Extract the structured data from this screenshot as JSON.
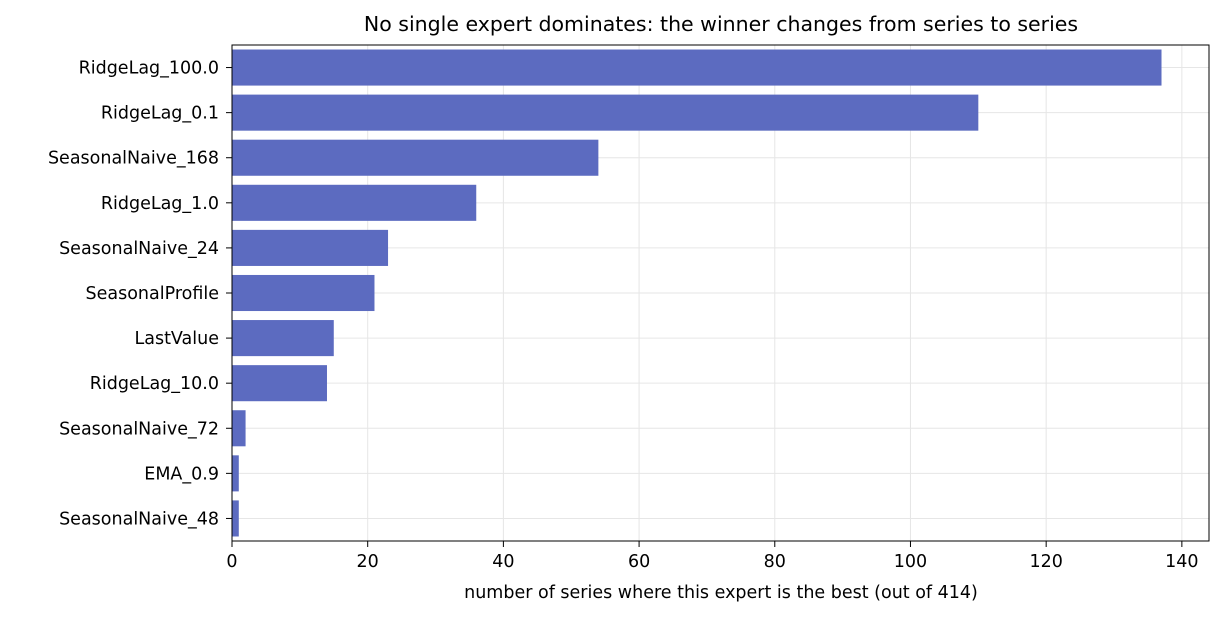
{
  "chart_data": {
    "type": "bar",
    "orientation": "horizontal",
    "title": "No single expert dominates: the winner changes from series to series",
    "xlabel": "number of series where this expert is the best (out of 414)",
    "ylabel": "",
    "categories": [
      "RidgeLag_100.0",
      "RidgeLag_0.1",
      "SeasonalNaive_168",
      "RidgeLag_1.0",
      "SeasonalNaive_24",
      "SeasonalProfile",
      "LastValue",
      "RidgeLag_10.0",
      "SeasonalNaive_72",
      "EMA_0.9",
      "SeasonalNaive_48"
    ],
    "values": [
      137,
      110,
      54,
      36,
      23,
      21,
      15,
      14,
      2,
      1,
      1
    ],
    "xlim": [
      0,
      144
    ],
    "xticks": [
      0,
      20,
      40,
      60,
      80,
      100,
      120,
      140
    ],
    "grid": true,
    "bar_color": "#5c6bc0",
    "grid_color": "#e6e6e6",
    "axis_color": "#000000"
  }
}
